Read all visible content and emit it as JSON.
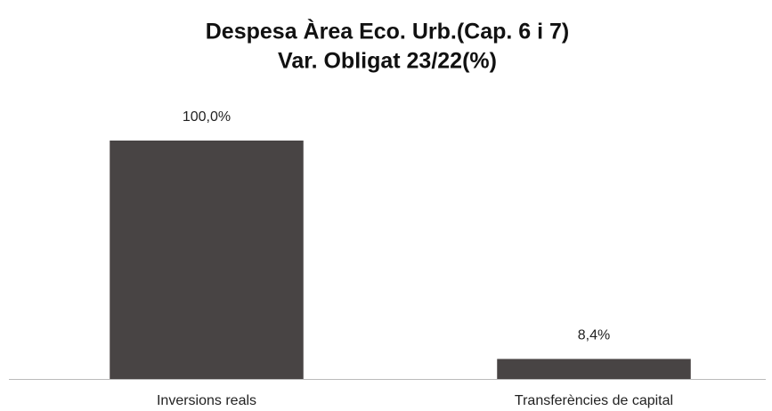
{
  "chart_data": {
    "type": "bar",
    "title": "Despesa Àrea Eco. Urb.(Cap. 6 i 7)",
    "subtitle": "Var. Obligat 23/22(%)",
    "categories": [
      "Inversions reals",
      "Transferències de capital"
    ],
    "values": [
      100,
      8.4
    ],
    "value_labels": [
      "100,0%",
      "8,4%"
    ],
    "color": "#484444"
  }
}
